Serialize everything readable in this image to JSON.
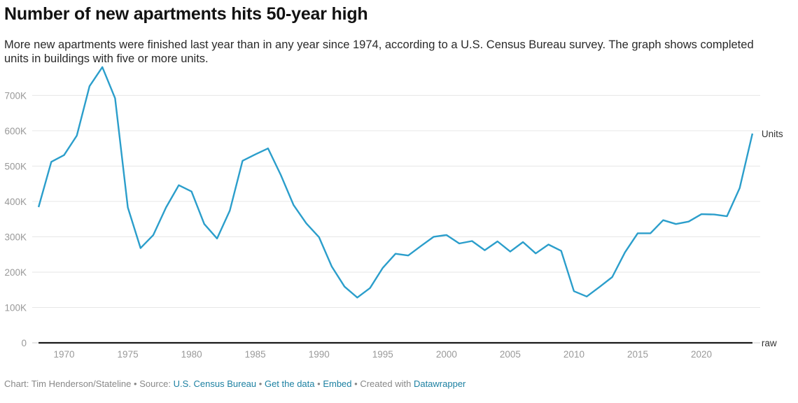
{
  "title": "Number of new apartments hits 50-year high",
  "subtitle": "More new apartments were finished last year than in any year since 1974, according to a U.S. Census Bureau survey. The graph shows completed units in buildings with five or more units.",
  "footer": {
    "chart_by": "Chart: Tim Henderson/Stateline",
    "source_label": "Source:",
    "source_link": "U.S. Census Bureau",
    "get_data": "Get the data",
    "embed": "Embed",
    "created_with": "Created with",
    "datawrapper": "Datawrapper",
    "separator": "•"
  },
  "colors": {
    "units_line": "#2b9ecb",
    "raw_line": "#1a1a1a",
    "grid": "#e6e6e6",
    "axis_text": "#999999",
    "link": "#1d81a2"
  },
  "chart_data": {
    "type": "line",
    "title": "Number of new apartments hits 50-year high",
    "x": [
      1968,
      1969,
      1970,
      1971,
      1972,
      1973,
      1974,
      1975,
      1976,
      1977,
      1978,
      1979,
      1980,
      1981,
      1982,
      1983,
      1984,
      1985,
      1986,
      1987,
      1988,
      1989,
      1990,
      1991,
      1992,
      1993,
      1994,
      1995,
      1996,
      1997,
      1998,
      1999,
      2000,
      2001,
      2002,
      2003,
      2004,
      2005,
      2006,
      2007,
      2008,
      2009,
      2010,
      2011,
      2012,
      2013,
      2014,
      2015,
      2016,
      2017,
      2018,
      2019,
      2020,
      2021,
      2022,
      2023,
      2024
    ],
    "series": [
      {
        "name": "Units",
        "values": [
          384000,
          512000,
          531000,
          586000,
          726000,
          780000,
          692000,
          383000,
          268000,
          305000,
          383000,
          446000,
          428000,
          336000,
          295000,
          374000,
          515000,
          533000,
          550000,
          475000,
          390000,
          338000,
          299000,
          216000,
          159000,
          128000,
          155000,
          212000,
          252000,
          247000,
          274000,
          300000,
          305000,
          281000,
          288000,
          262000,
          287000,
          258000,
          285000,
          253000,
          278000,
          260000,
          146000,
          131000,
          158000,
          186000,
          256000,
          310000,
          310000,
          347000,
          336000,
          343000,
          364000,
          363000,
          358000,
          438000,
          592000
        ]
      },
      {
        "name": "raw",
        "values": [
          0,
          0,
          0,
          0,
          0,
          0,
          0,
          0,
          0,
          0,
          0,
          0,
          0,
          0,
          0,
          0,
          0,
          0,
          0,
          0,
          0,
          0,
          0,
          0,
          0,
          0,
          0,
          0,
          0,
          0,
          0,
          0,
          0,
          0,
          0,
          0,
          0,
          0,
          0,
          0,
          0,
          0,
          0,
          0,
          0,
          0,
          0,
          0,
          0,
          0,
          0,
          0,
          0,
          0,
          0,
          0,
          0
        ]
      }
    ],
    "xlim": [
      1967.5,
      2024.5
    ],
    "ylim": [
      0,
      760000
    ],
    "y_ticks": [
      0,
      100000,
      200000,
      300000,
      400000,
      500000,
      600000,
      700000
    ],
    "y_tick_labels": [
      "0",
      "100K",
      "200K",
      "300K",
      "400K",
      "500K",
      "600K",
      "700K"
    ],
    "x_ticks": [
      1970,
      1975,
      1980,
      1985,
      1990,
      1995,
      2000,
      2005,
      2010,
      2015,
      2020
    ],
    "x_tick_labels": [
      "1970",
      "1975",
      "1980",
      "1985",
      "1990",
      "1995",
      "2000",
      "2005",
      "2010",
      "2015",
      "2020"
    ],
    "grid": true,
    "legend": "direct labels at line ends"
  }
}
